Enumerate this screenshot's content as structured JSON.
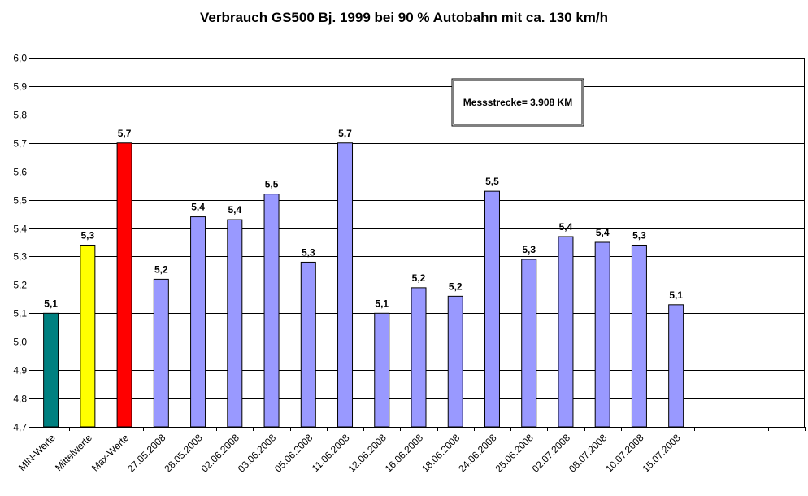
{
  "chart_data": {
    "type": "bar",
    "title": "Verbrauch GS500 Bj. 1999 bei 90 % Autobahn mit ca. 130 km/h",
    "xlabel": "",
    "ylabel": "",
    "ylim": [
      4.7,
      6.0
    ],
    "ytick_step": 0.1,
    "grid": true,
    "categories": [
      "MIN-Werte",
      "Mittelwerte",
      "Max-Werte",
      "27.05.2008",
      "28.05.2008",
      "02.06.2008",
      "03.06.2008",
      "05.06.2008",
      "11.06.2008",
      "12.06.2008",
      "16.06.2008",
      "18.06.2008",
      "24.06.2008",
      "25.06.2008",
      "02.07.2008",
      "08.07.2008",
      "10.07.2008",
      "15.07.2008"
    ],
    "empty_slots": 3,
    "values": [
      5.1,
      5.34,
      5.7,
      5.22,
      5.44,
      5.43,
      5.52,
      5.28,
      5.7,
      5.1,
      5.19,
      5.16,
      5.53,
      5.29,
      5.37,
      5.35,
      5.34,
      5.13
    ],
    "data_labels": [
      "5,1",
      "5,3",
      "5,7",
      "5,2",
      "5,4",
      "5,4",
      "5,5",
      "5,3",
      "5,7",
      "5,1",
      "5,2",
      "5,2",
      "5,5",
      "5,3",
      "5,4",
      "5,4",
      "5,3",
      "5,1"
    ],
    "colors": [
      "#008080",
      "#ffff00",
      "#ff0000",
      "#9999ff",
      "#9999ff",
      "#9999ff",
      "#9999ff",
      "#9999ff",
      "#9999ff",
      "#9999ff",
      "#9999ff",
      "#9999ff",
      "#9999ff",
      "#9999ff",
      "#9999ff",
      "#9999ff",
      "#9999ff",
      "#9999ff"
    ],
    "annotation": "Messstrecke= 3.908 KM"
  }
}
